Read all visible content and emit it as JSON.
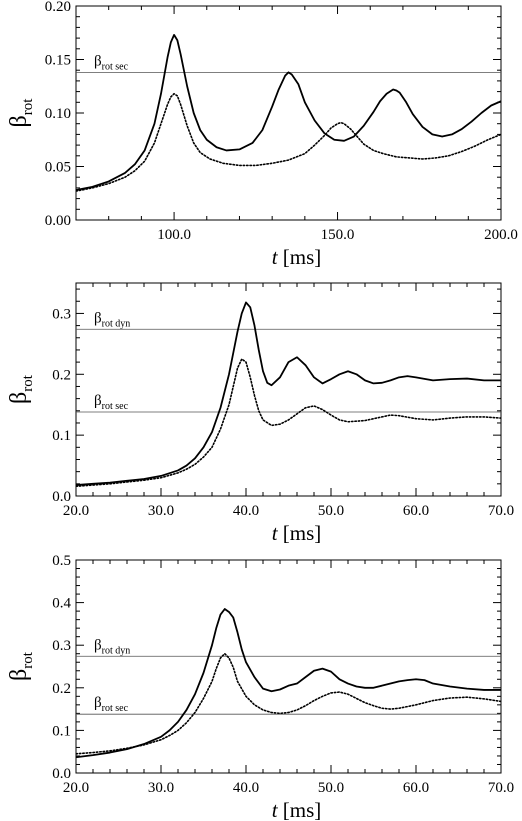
{
  "chart_data": [
    {
      "type": "line",
      "xlabel": {
        "var": "t",
        "unit": "[ms]"
      },
      "ylabel": {
        "base": "β",
        "sub": "rot"
      },
      "xlim": [
        70,
        200
      ],
      "ylim": [
        0,
        0.2
      ],
      "xticks": [
        100,
        150,
        200
      ],
      "xtick_labels": [
        "100.0",
        "150.0",
        "200.0"
      ],
      "yticks": [
        0,
        0.05,
        0.1,
        0.15,
        0.2
      ],
      "ytick_labels": [
        "0.00",
        "0.05",
        "0.10",
        "0.15",
        "0.20"
      ],
      "hlines": [
        {
          "y": 0.138,
          "label_base": "β",
          "label_sub": "rot sec"
        }
      ],
      "series": [
        {
          "style": "solid",
          "x": [
            70,
            75,
            80,
            85,
            88,
            91,
            94,
            96,
            98,
            99,
            100,
            101,
            102,
            104,
            106,
            108,
            110,
            113,
            116,
            120,
            124,
            127,
            130,
            132,
            134,
            135,
            136,
            138,
            140,
            143,
            146,
            149,
            152,
            155,
            158,
            161,
            163,
            165,
            167,
            168,
            169,
            171,
            173,
            176,
            179,
            182,
            185,
            188,
            191,
            194,
            197,
            200
          ],
          "y": [
            0.028,
            0.031,
            0.036,
            0.044,
            0.052,
            0.065,
            0.09,
            0.118,
            0.152,
            0.166,
            0.173,
            0.168,
            0.155,
            0.125,
            0.1,
            0.084,
            0.075,
            0.068,
            0.065,
            0.066,
            0.072,
            0.084,
            0.106,
            0.122,
            0.135,
            0.138,
            0.136,
            0.127,
            0.11,
            0.093,
            0.081,
            0.075,
            0.074,
            0.078,
            0.088,
            0.101,
            0.111,
            0.118,
            0.122,
            0.121,
            0.119,
            0.11,
            0.099,
            0.087,
            0.08,
            0.078,
            0.08,
            0.085,
            0.092,
            0.1,
            0.107,
            0.111
          ]
        },
        {
          "style": "dotted",
          "x": [
            70,
            75,
            80,
            85,
            88,
            91,
            94,
            96,
            98,
            99,
            100,
            101,
            102,
            104,
            106,
            108,
            111,
            115,
            120,
            125,
            130,
            135,
            140,
            143,
            146,
            148,
            150,
            151,
            152,
            154,
            156,
            158,
            161,
            164,
            168,
            172,
            176,
            180,
            184,
            188,
            192,
            196,
            200
          ],
          "y": [
            0.027,
            0.03,
            0.034,
            0.04,
            0.046,
            0.055,
            0.072,
            0.09,
            0.108,
            0.115,
            0.118,
            0.116,
            0.108,
            0.088,
            0.072,
            0.063,
            0.057,
            0.053,
            0.051,
            0.051,
            0.053,
            0.056,
            0.062,
            0.07,
            0.079,
            0.086,
            0.09,
            0.091,
            0.09,
            0.085,
            0.078,
            0.071,
            0.065,
            0.062,
            0.059,
            0.058,
            0.057,
            0.058,
            0.06,
            0.064,
            0.069,
            0.075,
            0.08
          ]
        }
      ]
    },
    {
      "type": "line",
      "xlabel": {
        "var": "t",
        "unit": "[ms]"
      },
      "ylabel": {
        "base": "β",
        "sub": "rot"
      },
      "xlim": [
        20,
        70
      ],
      "ylim": [
        0,
        0.35
      ],
      "xticks": [
        20,
        30,
        40,
        50,
        60,
        70
      ],
      "xtick_labels": [
        "20.0",
        "30.0",
        "40.0",
        "50.0",
        "60.0",
        "70.0"
      ],
      "yticks": [
        0,
        0.1,
        0.2,
        0.3
      ],
      "ytick_labels": [
        "0.0",
        "0.1",
        "0.2",
        "0.3"
      ],
      "hlines": [
        {
          "y": 0.274,
          "label_base": "β",
          "label_sub": "rot dyn"
        },
        {
          "y": 0.138,
          "label_base": "β",
          "label_sub": "rot sec"
        }
      ],
      "series": [
        {
          "style": "solid",
          "x": [
            20,
            22,
            24,
            26,
            28,
            30,
            32,
            33,
            34,
            35,
            36,
            37,
            38,
            38.5,
            39,
            39.5,
            40,
            40.5,
            41,
            41.5,
            42,
            42.5,
            43,
            44,
            45,
            46,
            47,
            48,
            49,
            50,
            51,
            52,
            53,
            54,
            55,
            56,
            57,
            58,
            59,
            60,
            62,
            64,
            66,
            68,
            70
          ],
          "y": [
            0.018,
            0.02,
            0.022,
            0.025,
            0.028,
            0.033,
            0.042,
            0.05,
            0.062,
            0.08,
            0.105,
            0.145,
            0.2,
            0.235,
            0.27,
            0.3,
            0.318,
            0.31,
            0.28,
            0.24,
            0.205,
            0.186,
            0.182,
            0.195,
            0.22,
            0.228,
            0.215,
            0.195,
            0.185,
            0.192,
            0.2,
            0.205,
            0.2,
            0.19,
            0.185,
            0.186,
            0.19,
            0.195,
            0.197,
            0.195,
            0.19,
            0.192,
            0.193,
            0.19,
            0.19
          ]
        },
        {
          "style": "dotted",
          "x": [
            20,
            22,
            24,
            26,
            28,
            30,
            32,
            33,
            34,
            35,
            36,
            37,
            38,
            38.5,
            39,
            39.5,
            40,
            40.5,
            41,
            41.5,
            42,
            43,
            44,
            45,
            46,
            47,
            48,
            49,
            50,
            51,
            52,
            54,
            56,
            57,
            58,
            60,
            62,
            64,
            66,
            68,
            70
          ],
          "y": [
            0.016,
            0.018,
            0.02,
            0.023,
            0.026,
            0.03,
            0.038,
            0.044,
            0.052,
            0.064,
            0.08,
            0.11,
            0.15,
            0.18,
            0.21,
            0.225,
            0.22,
            0.195,
            0.165,
            0.14,
            0.125,
            0.116,
            0.118,
            0.125,
            0.135,
            0.145,
            0.148,
            0.142,
            0.133,
            0.125,
            0.122,
            0.124,
            0.13,
            0.133,
            0.132,
            0.127,
            0.125,
            0.128,
            0.13,
            0.13,
            0.128
          ]
        }
      ]
    },
    {
      "type": "line",
      "xlabel": {
        "var": "t",
        "unit": "[ms]"
      },
      "ylabel": {
        "base": "β",
        "sub": "rot"
      },
      "xlim": [
        20,
        70
      ],
      "ylim": [
        0,
        0.5
      ],
      "xticks": [
        20,
        30,
        40,
        50,
        60,
        70
      ],
      "xtick_labels": [
        "20.0",
        "30.0",
        "40.0",
        "50.0",
        "60.0",
        "70.0"
      ],
      "yticks": [
        0,
        0.1,
        0.2,
        0.3,
        0.4,
        0.5
      ],
      "ytick_labels": [
        "0.0",
        "0.1",
        "0.2",
        "0.3",
        "0.4",
        "0.5"
      ],
      "hlines": [
        {
          "y": 0.274,
          "label_base": "β",
          "label_sub": "rot dyn"
        },
        {
          "y": 0.138,
          "label_base": "β",
          "label_sub": "rot sec"
        }
      ],
      "series": [
        {
          "style": "solid",
          "x": [
            20,
            22,
            24,
            26,
            28,
            30,
            31,
            32,
            33,
            34,
            35,
            36,
            36.5,
            37,
            37.5,
            38,
            38.5,
            39,
            39.5,
            40,
            41,
            42,
            43,
            44,
            45,
            46,
            47,
            48,
            49,
            50,
            51,
            52,
            53,
            54,
            55,
            56,
            57,
            58,
            59,
            60,
            61,
            62,
            64,
            66,
            68,
            70
          ],
          "y": [
            0.037,
            0.042,
            0.048,
            0.056,
            0.068,
            0.085,
            0.1,
            0.12,
            0.148,
            0.185,
            0.235,
            0.3,
            0.34,
            0.372,
            0.385,
            0.378,
            0.365,
            0.33,
            0.29,
            0.26,
            0.225,
            0.198,
            0.192,
            0.196,
            0.205,
            0.21,
            0.225,
            0.24,
            0.245,
            0.238,
            0.22,
            0.21,
            0.203,
            0.2,
            0.2,
            0.205,
            0.21,
            0.215,
            0.218,
            0.22,
            0.218,
            0.21,
            0.203,
            0.198,
            0.195,
            0.195
          ]
        },
        {
          "style": "dotted",
          "x": [
            20,
            22,
            24,
            26,
            28,
            30,
            31,
            32,
            33,
            34,
            35,
            36,
            36.5,
            37,
            37.5,
            38,
            38.5,
            39,
            40,
            41,
            42,
            43,
            44,
            45,
            46,
            47,
            48,
            49,
            50,
            51,
            52,
            53,
            54,
            55,
            56,
            57,
            58,
            60,
            62,
            64,
            66,
            68,
            70
          ],
          "y": [
            0.045,
            0.048,
            0.052,
            0.058,
            0.066,
            0.078,
            0.088,
            0.1,
            0.118,
            0.142,
            0.175,
            0.215,
            0.245,
            0.27,
            0.28,
            0.27,
            0.248,
            0.215,
            0.18,
            0.16,
            0.148,
            0.142,
            0.14,
            0.142,
            0.148,
            0.158,
            0.17,
            0.18,
            0.188,
            0.19,
            0.185,
            0.175,
            0.165,
            0.158,
            0.152,
            0.15,
            0.152,
            0.16,
            0.17,
            0.176,
            0.178,
            0.174,
            0.168
          ]
        }
      ]
    }
  ]
}
